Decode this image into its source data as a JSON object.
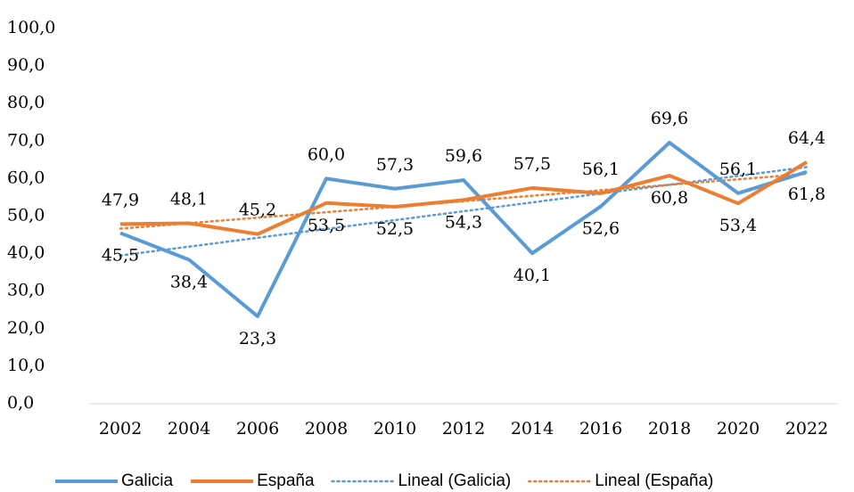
{
  "chart_data": {
    "type": "line",
    "categories": [
      "2002",
      "2004",
      "2006",
      "2008",
      "2010",
      "2012",
      "2014",
      "2016",
      "2018",
      "2020",
      "2022"
    ],
    "series": [
      {
        "name": "Galicia",
        "color": "#5b9bd5",
        "values": [
          45.5,
          38.4,
          23.3,
          60.0,
          57.3,
          59.6,
          40.1,
          52.6,
          69.6,
          56.1,
          61.8
        ],
        "value_labels": [
          "45,5",
          "38,4",
          "23,3",
          "60,0",
          "57,3",
          "59,6",
          "40,1",
          "52,6",
          "69,6",
          "56,1",
          "61,8"
        ]
      },
      {
        "name": "España",
        "color": "#ed7d31",
        "values": [
          47.9,
          48.1,
          45.2,
          53.5,
          52.5,
          54.3,
          57.5,
          56.1,
          60.8,
          53.4,
          64.4
        ],
        "value_labels": [
          "47,9",
          "48,1",
          "45,2",
          "53,5",
          "52,5",
          "54,3",
          "57,5",
          "56,1",
          "60,8",
          "53,4",
          "64,4"
        ]
      }
    ],
    "trendlines": [
      {
        "name": "Lineal (Galicia)",
        "series": 0,
        "kind": "linear",
        "color": "#5b9bd5"
      },
      {
        "name": "Lineal (España)",
        "series": 1,
        "kind": "linear",
        "color": "#ed7d31"
      }
    ],
    "ylim": [
      0,
      100
    ],
    "yticks": [
      {
        "value": 0,
        "label": "0,0"
      },
      {
        "value": 10,
        "label": "10,0"
      },
      {
        "value": 20,
        "label": "20,0"
      },
      {
        "value": 30,
        "label": "30,0"
      },
      {
        "value": 40,
        "label": "40,0"
      },
      {
        "value": 50,
        "label": "50,0"
      },
      {
        "value": 60,
        "label": "60,0"
      },
      {
        "value": 70,
        "label": "70,0"
      },
      {
        "value": 80,
        "label": "80,0"
      },
      {
        "value": 90,
        "label": "90,0"
      },
      {
        "value": 100,
        "label": "100,0"
      }
    ],
    "legend": "bottom"
  }
}
